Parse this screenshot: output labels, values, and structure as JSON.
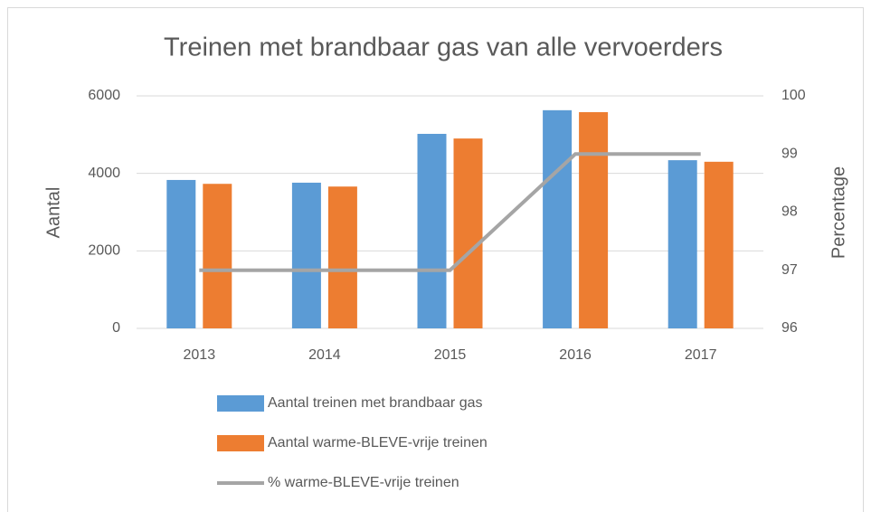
{
  "chart_data": {
    "type": "bar",
    "title": "Treinen met brandbaar gas van alle vervoerders",
    "categories": [
      "2013",
      "2014",
      "2015",
      "2016",
      "2017"
    ],
    "series": [
      {
        "name": "Aantal treinen met brandbaar gas",
        "color": "#5b9bd5",
        "type": "bar",
        "values": [
          3830,
          3760,
          5020,
          5630,
          4340
        ]
      },
      {
        "name": "Aantal warme-BLEVE-vrije treinen",
        "color": "#ed7d31",
        "type": "bar",
        "values": [
          3730,
          3660,
          4900,
          5580,
          4300
        ]
      },
      {
        "name": "% warme-BLEVE-vrije treinen",
        "color": "#a5a5a5",
        "type": "line",
        "axis": "y2",
        "values": [
          97,
          97,
          97,
          99,
          99
        ]
      }
    ],
    "ylabel": "Aantal",
    "y2label": "Percentage",
    "ylim": [
      0,
      6000
    ],
    "yticks": [
      0,
      2000,
      4000,
      6000
    ],
    "y2lim": [
      96,
      100
    ],
    "y2ticks": [
      96,
      97,
      98,
      99,
      100
    ],
    "grid": true,
    "legend": "bottom"
  }
}
